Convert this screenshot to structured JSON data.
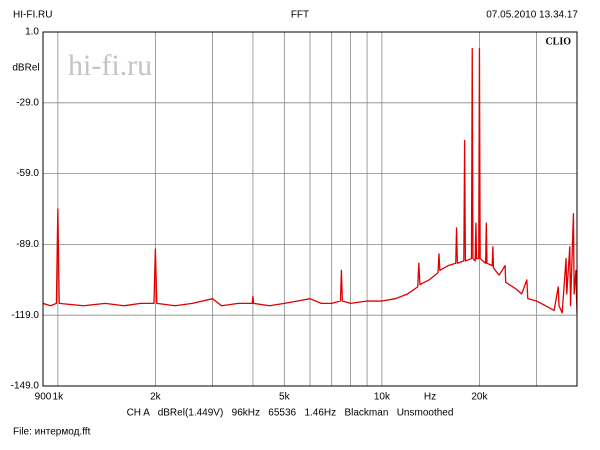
{
  "chart_data": {
    "type": "line",
    "header_left": "HI-FI.RU",
    "title": "FFT",
    "timestamp": "07.05.2010 13.34.17",
    "brand": "CLIO",
    "watermark": "hi-fi.ru",
    "ylabel": "dBRel",
    "xlabel": "Hz",
    "settings": "CH A   dBRel(1.449V)   96kHz   65536   1.46Hz   Blackman   Unsmoothed",
    "file": "File: интермод.fft",
    "log_x": true,
    "grid": true,
    "xlim": [
      900,
      40000
    ],
    "xticks": [
      {
        "value": 900,
        "label": "900"
      },
      {
        "value": 1000,
        "label": "1k"
      },
      {
        "value": 2000,
        "label": "2k"
      },
      {
        "value": 5000,
        "label": "5k"
      },
      {
        "value": 10000,
        "label": "10k"
      },
      {
        "value": 20000,
        "label": "20k"
      }
    ],
    "xminor": [
      3000,
      4000,
      6000,
      7000,
      8000,
      9000,
      30000
    ],
    "ylim": [
      -149,
      1
    ],
    "yticks": [
      {
        "value": 1,
        "label": "1.0"
      },
      {
        "value": -29,
        "label": "-29.0"
      },
      {
        "value": -59,
        "label": "-59.0"
      },
      {
        "value": -89,
        "label": "-89.0"
      },
      {
        "value": -119,
        "label": "-119.0"
      },
      {
        "value": -149,
        "label": "-149.0"
      }
    ],
    "series": [
      {
        "color": "#e00000",
        "x": [
          900,
          950,
          990,
          1000,
          1010,
          1200,
          1400,
          1600,
          1800,
          1980,
          2000,
          2020,
          2300,
          2600,
          3000,
          3200,
          3600,
          3980,
          4000,
          4020,
          4500,
          5000,
          5500,
          6000,
          6500,
          7000,
          7450,
          7500,
          7550,
          8000,
          9000,
          10000,
          11000,
          12000,
          12900,
          13000,
          13100,
          14000,
          14900,
          15000,
          15100,
          16000,
          16900,
          17000,
          17100,
          17900,
          18000,
          18100,
          18900,
          19000,
          19100,
          19400,
          19500,
          19600,
          19900,
          20000,
          20100,
          20900,
          21000,
          21100,
          21900,
          22000,
          22100,
          23000,
          24000,
          24100,
          26000,
          27000,
          28000,
          28200,
          30000,
          32000,
          34000,
          35000,
          35200,
          36000,
          37000,
          37200,
          38000,
          38200,
          39000,
          39200,
          39700,
          40000
        ],
        "values": [
          -114,
          -115,
          -114,
          -74,
          -114,
          -115,
          -114,
          -115,
          -114,
          -114,
          -91,
          -114,
          -115,
          -114,
          -112,
          -115,
          -114,
          -114,
          -111,
          -114,
          -115,
          -114,
          -113,
          -112,
          -114,
          -114,
          -113,
          -100,
          -113,
          -114,
          -113,
          -113,
          -112,
          -110,
          -107,
          -97,
          -106,
          -104,
          -101,
          -93,
          -100,
          -98,
          -97,
          -82,
          -97,
          -96,
          -45,
          -96,
          -95,
          -6,
          -95,
          -96,
          -80,
          -95,
          -95,
          -6,
          -95,
          -97,
          -80,
          -97,
          -98,
          -90,
          -99,
          -102,
          -98,
          -105,
          -108,
          -110,
          -104,
          -112,
          -113,
          -115,
          -117,
          -107,
          -115,
          -118,
          -95,
          -110,
          -90,
          -115,
          -76,
          -110,
          -100,
          -118
        ]
      }
    ]
  }
}
